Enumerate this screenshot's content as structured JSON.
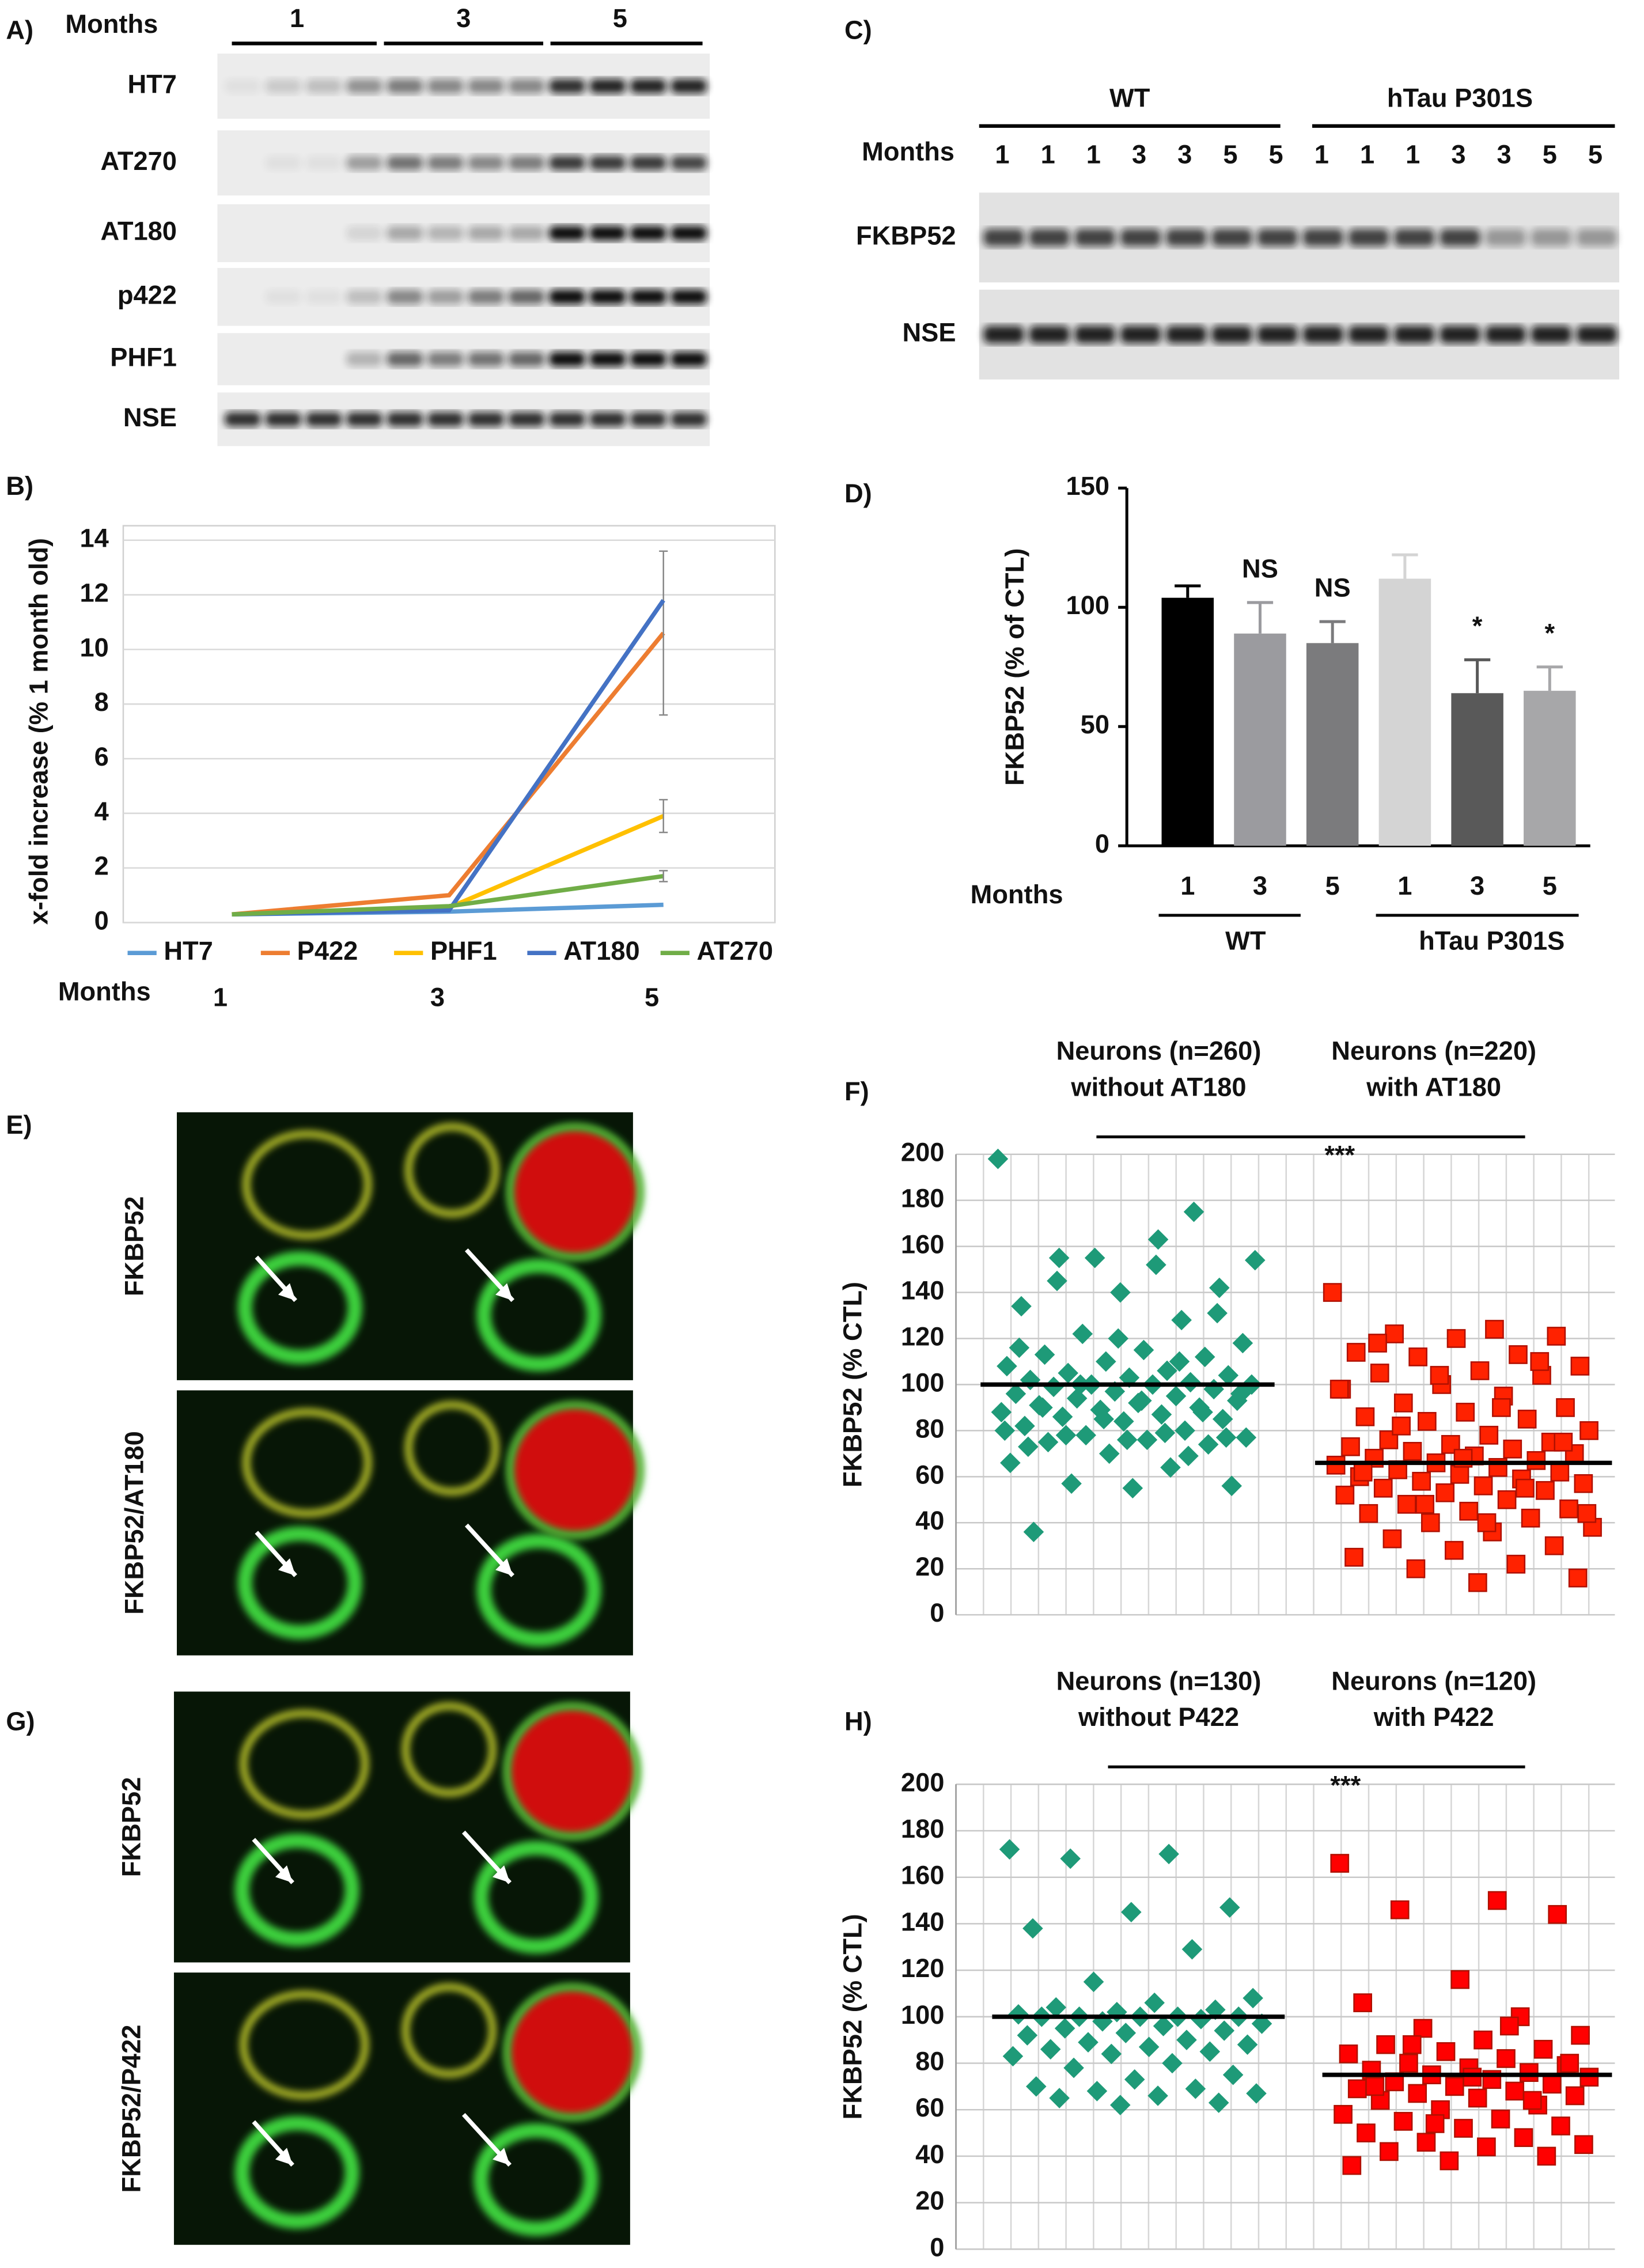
{
  "panels": {
    "A": {
      "label": "A)",
      "months_label": "Months",
      "months": [
        "1",
        "3",
        "5"
      ],
      "rows": [
        "HT7",
        "AT270",
        "AT180",
        "p422",
        "PHF1",
        "NSE"
      ]
    },
    "C": {
      "label": "C)",
      "groups": [
        "WT",
        "hTau P301S"
      ],
      "months_label": "Months",
      "lanes": [
        "1",
        "1",
        "1",
        "3",
        "3",
        "5",
        "5",
        "1",
        "1",
        "1",
        "3",
        "3",
        "5",
        "5"
      ],
      "rows": [
        "FKBP52",
        "NSE"
      ]
    },
    "E": {
      "label": "E)",
      "rows": [
        "FKBP52",
        "FKBP52/AT180"
      ]
    },
    "G": {
      "label": "G)",
      "rows": [
        "FKBP52",
        "FKBP52/P422"
      ]
    }
  },
  "chart_data": [
    {
      "type": "line",
      "panel_label": "B)",
      "x_label": "Months",
      "y_label": "x-fold increase (% 1 month old)",
      "categories": [
        "1",
        "3",
        "5"
      ],
      "ylim": [
        0,
        14
      ],
      "yticks": [
        0,
        2,
        4,
        6,
        8,
        10,
        12,
        14
      ],
      "grid": true,
      "series": [
        {
          "name": "HT7",
          "color": "#5b9bd5",
          "values": [
            0.3,
            0.4,
            0.65
          ]
        },
        {
          "name": "P422",
          "color": "#ed7d31",
          "values": [
            0.3,
            1.0,
            10.6
          ],
          "errors": [
            null,
            null,
            3.0
          ]
        },
        {
          "name": "PHF1",
          "color": "#ffc000",
          "values": [
            0.3,
            0.55,
            3.9
          ],
          "errors": [
            null,
            null,
            0.6
          ]
        },
        {
          "name": "AT180",
          "color": "#4472c4",
          "values": [
            0.3,
            0.45,
            11.8
          ]
        },
        {
          "name": "AT270",
          "color": "#70ad47",
          "values": [
            0.3,
            0.6,
            1.7
          ],
          "errors": [
            null,
            null,
            0.2
          ]
        }
      ]
    },
    {
      "type": "bar",
      "panel_label": "D)",
      "x_label": "Months",
      "y_label": "FKBP52 (% of CTL)",
      "categories": [
        "1",
        "3",
        "5",
        "1",
        "3",
        "5"
      ],
      "values": [
        104,
        89,
        85,
        112,
        64,
        65
      ],
      "errors": [
        5,
        13,
        9,
        10,
        14,
        10
      ],
      "colors": [
        "#000000",
        "#9b9b9f",
        "#7b7b7d",
        "#d4d4d4",
        "#595959",
        "#a7a7a9"
      ],
      "annotations": [
        null,
        "NS",
        "NS",
        null,
        "*",
        "*"
      ],
      "group_labels": [
        "WT",
        "hTau P301S"
      ],
      "ylim": [
        0,
        150
      ],
      "yticks": [
        0,
        50,
        100,
        150
      ]
    },
    {
      "type": "strip",
      "panel_label": "F)",
      "y_label": "FKBP52 (% CTL)",
      "significance": "***",
      "ylim": [
        0,
        200
      ],
      "yticks": [
        0,
        20,
        40,
        60,
        80,
        100,
        120,
        140,
        160,
        180,
        200
      ],
      "groups": [
        {
          "label_lines": [
            "Neurons (n=260)",
            "without AT180"
          ],
          "color": "#1e9a78",
          "marker": "diamond",
          "mean": 100,
          "values": [
            198,
            163,
            155,
            142,
            140,
            134,
            128,
            122,
            118,
            115,
            113,
            112,
            110,
            108,
            106,
            105,
            104,
            103,
            102,
            101,
            100,
            100,
            100,
            99,
            98,
            97,
            96,
            95,
            94,
            93,
            92,
            91,
            90,
            89,
            88,
            87,
            86,
            85,
            84,
            82,
            80,
            78,
            77,
            76,
            75,
            74,
            70,
            66,
            64,
            57,
            56,
            55,
            36,
            175,
            155,
            154,
            152,
            145,
            131,
            120,
            116,
            110,
            100,
            96,
            93,
            90,
            88,
            85,
            80,
            79,
            78,
            77,
            76,
            73,
            69
          ]
        },
        {
          "label_lines": [
            "Neurons (n=220)",
            "with AT180"
          ],
          "color": "#ff2200",
          "marker": "square",
          "mean": 66,
          "values": [
            140,
            124,
            122,
            121,
            120,
            114,
            113,
            112,
            108,
            106,
            105,
            104,
            100,
            98,
            95,
            92,
            90,
            88,
            86,
            85,
            84,
            80,
            78,
            76,
            75,
            74,
            73,
            72,
            71,
            70,
            69,
            68,
            67,
            66,
            65,
            64,
            63,
            62,
            61,
            60,
            59,
            58,
            57,
            56,
            55,
            54,
            53,
            52,
            50,
            48,
            46,
            45,
            44,
            42,
            40,
            38,
            36,
            33,
            30,
            28,
            25,
            22,
            20,
            16,
            14,
            118,
            110,
            104,
            98,
            90,
            82,
            75,
            68,
            62,
            55,
            48,
            44,
            40
          ]
        }
      ]
    },
    {
      "type": "strip",
      "panel_label": "H)",
      "y_label": "FKBP52 (% CTL)",
      "significance": "***",
      "ylim": [
        0,
        200
      ],
      "yticks": [
        0,
        20,
        40,
        60,
        80,
        100,
        120,
        140,
        160,
        180,
        200
      ],
      "groups": [
        {
          "label_lines": [
            "Neurons (n=130)",
            "without P422"
          ],
          "color": "#1e9a78",
          "marker": "diamond",
          "mean": 100,
          "values": [
            172,
            170,
            168,
            147,
            145,
            138,
            129,
            115,
            108,
            106,
            104,
            103,
            102,
            101,
            100,
            100,
            100,
            100,
            100,
            99,
            98,
            97,
            96,
            95,
            94,
            93,
            92,
            90,
            89,
            88,
            87,
            86,
            85,
            84,
            83,
            80,
            78,
            75,
            73,
            70,
            69,
            68,
            67,
            66,
            65,
            63,
            62
          ]
        },
        {
          "label_lines": [
            "Neurons (n=120)",
            "with P422"
          ],
          "color": "#ff0000",
          "marker": "square",
          "mean": 75,
          "values": [
            166,
            150,
            146,
            144,
            116,
            106,
            100,
            95,
            92,
            90,
            88,
            86,
            85,
            84,
            82,
            80,
            79,
            78,
            77,
            76,
            75,
            74,
            73,
            72,
            71,
            70,
            69,
            68,
            67,
            66,
            65,
            64,
            62,
            60,
            58,
            56,
            55,
            53,
            52,
            50,
            48,
            46,
            45,
            44,
            42,
            40,
            38,
            36,
            96,
            88,
            80,
            74,
            70,
            64,
            54
          ]
        }
      ]
    }
  ]
}
